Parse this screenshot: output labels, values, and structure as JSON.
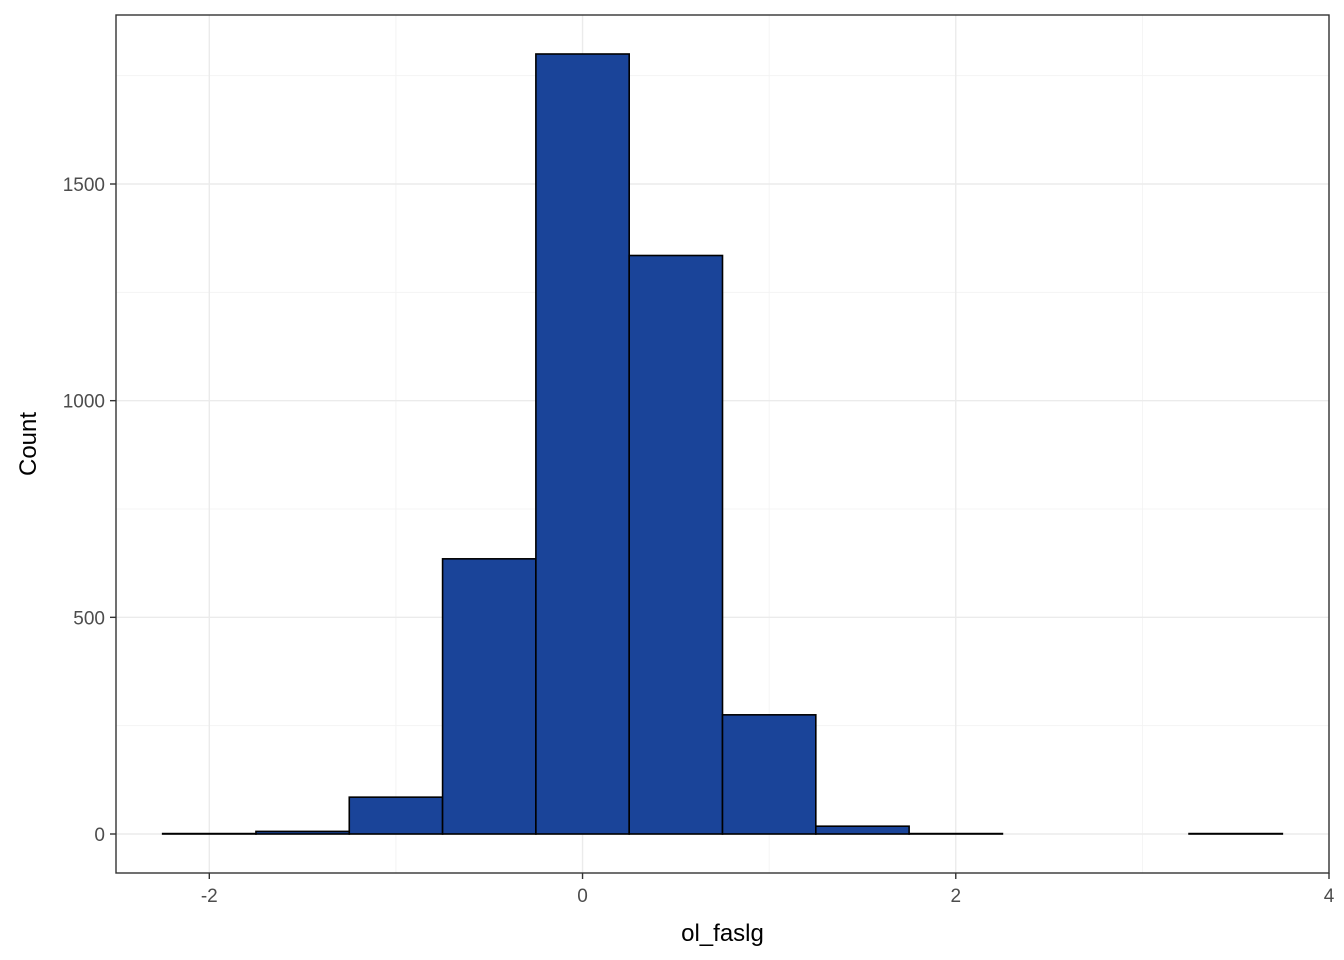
{
  "chart_data": {
    "type": "bar",
    "xlabel": "ol_faslg",
    "ylabel": "Count",
    "xlim": [
      -2.5,
      4.0
    ],
    "ylim": [
      -90,
      1890
    ],
    "x_ticks": [
      -2,
      0,
      2,
      4
    ],
    "x_tick_labels": [
      "-2",
      "0",
      "2",
      "4"
    ],
    "y_ticks": [
      0,
      500,
      1000,
      1500
    ],
    "y_tick_labels": [
      "0",
      "500",
      "1000",
      "1500"
    ],
    "bin_width": 0.5,
    "bins": [
      {
        "x0": -2.25,
        "x1": -1.75,
        "count": 1
      },
      {
        "x0": -1.75,
        "x1": -1.25,
        "count": 6
      },
      {
        "x0": -1.25,
        "x1": -0.75,
        "count": 85
      },
      {
        "x0": -0.75,
        "x1": -0.25,
        "count": 635
      },
      {
        "x0": -0.25,
        "x1": 0.25,
        "count": 1800
      },
      {
        "x0": 0.25,
        "x1": 0.75,
        "count": 1335
      },
      {
        "x0": 0.75,
        "x1": 1.25,
        "count": 275
      },
      {
        "x0": 1.25,
        "x1": 1.75,
        "count": 18
      },
      {
        "x0": 1.75,
        "x1": 2.25,
        "count": 1
      },
      {
        "x0": 2.25,
        "x1": 2.75,
        "count": 0
      },
      {
        "x0": 2.75,
        "x1": 3.25,
        "count": 0
      },
      {
        "x0": 3.25,
        "x1": 3.75,
        "count": 1
      }
    ],
    "fill_color": "#1a4499",
    "outline_color": "#000000",
    "grid": true,
    "legend": "none"
  }
}
